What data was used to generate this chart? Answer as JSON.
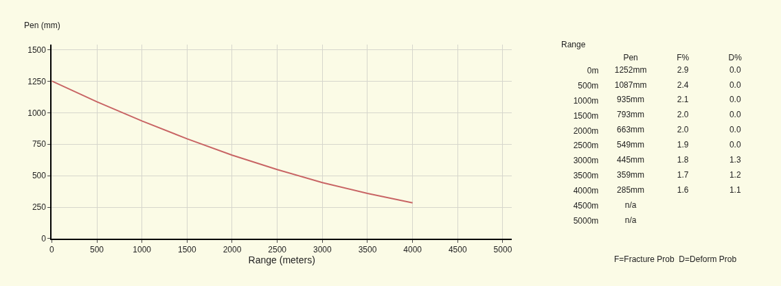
{
  "chart_data": [
    {
      "type": "line",
      "xlabel": "Range (meters)",
      "ylabel": "Pen (mm)",
      "x": [
        0,
        500,
        1000,
        1500,
        2000,
        2500,
        3000,
        3500,
        4000
      ],
      "values": [
        1252,
        1087,
        935,
        793,
        663,
        549,
        445,
        359,
        285
      ],
      "color": "#c86464",
      "xlim": [
        0,
        5100
      ],
      "ylim": [
        0,
        1540
      ],
      "xticks": [
        0,
        500,
        1000,
        1500,
        2000,
        2500,
        3000,
        3500,
        4000,
        4500,
        5000
      ],
      "yticks": [
        0,
        250,
        500,
        750,
        1000,
        1250,
        1500
      ],
      "grid": true,
      "line_style": "solid",
      "marker": "none"
    },
    {
      "type": "heatmap",
      "ylabel": "Range",
      "categories": [
        "Pen",
        "F%",
        "D%"
      ],
      "y_categories": [
        "0m",
        "500m",
        "1000m",
        "1500m",
        "2000m",
        "2500m",
        "3000m",
        "3500m",
        "4000m",
        "4500m",
        "5000m"
      ],
      "cells": [
        [
          null,
          null,
          null
        ],
        [
          null,
          null,
          null
        ],
        [
          null,
          null,
          null
        ],
        [
          null,
          null,
          null
        ],
        [
          null,
          null,
          null
        ],
        [
          null,
          null,
          null
        ],
        [
          null,
          null,
          null
        ],
        [
          null,
          null,
          null
        ],
        [
          null,
          null,
          null
        ],
        [
          null,
          null,
          null
        ],
        [
          null,
          null,
          null
        ]
      ],
      "cell_labels": [
        [
          "1252mm",
          "2.9",
          "0.0"
        ],
        [
          "1087mm",
          "2.4",
          "0.0"
        ],
        [
          "935mm",
          "2.1",
          "0.0"
        ],
        [
          "793mm",
          "2.0",
          "0.0"
        ],
        [
          "663mm",
          "2.0",
          "0.0"
        ],
        [
          "549mm",
          "1.9",
          "0.0"
        ],
        [
          "445mm",
          "1.8",
          "1.3"
        ],
        [
          "359mm",
          "1.7",
          "1.2"
        ],
        [
          "285mm",
          "1.6",
          "1.1"
        ],
        [
          "n/a",
          null,
          null
        ],
        [
          "n/a",
          null,
          null
        ]
      ],
      "annotations": [
        "F=Fracture Prob  D=Deform Prob"
      ]
    }
  ]
}
